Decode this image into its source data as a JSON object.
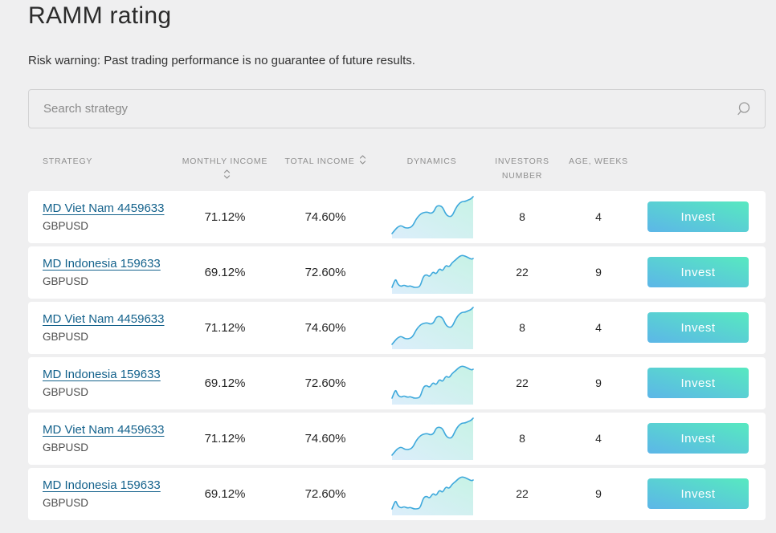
{
  "page": {
    "title": "RAMM rating",
    "risk_warning": "Risk warning: Past trading performance is no guarantee of future results."
  },
  "search": {
    "placeholder": "Search strategy",
    "icon": "magnifier-icon"
  },
  "colors": {
    "link": "#14628c",
    "chart_line": "#3fa9dc",
    "chart_fill_start": "#dceefb",
    "chart_fill_end": "#c7f3e5",
    "button_gradient_start": "#5cb6e8",
    "button_gradient_end": "#57e9c0"
  },
  "table": {
    "headers": {
      "strategy": "STRATEGY",
      "monthly_income": "MONTHLY INCOME",
      "total_income": "TOTAL INCOME",
      "dynamics": "DYNAMICS",
      "investors_line1": "INVESTORS",
      "investors_line2": "NUMBER",
      "age_weeks": "AGE, WEEKS",
      "sort_icon": "chevron-up-down-icon"
    },
    "invest_button_label": "Invest",
    "sparklines": {
      "vietnam": [
        [
          2,
          48
        ],
        [
          6,
          43
        ],
        [
          10,
          39
        ],
        [
          14,
          38
        ],
        [
          18,
          41
        ],
        [
          24,
          41
        ],
        [
          28,
          38
        ],
        [
          32,
          30
        ],
        [
          36,
          25
        ],
        [
          40,
          22
        ],
        [
          46,
          21
        ],
        [
          50,
          23
        ],
        [
          54,
          21
        ],
        [
          57,
          14
        ],
        [
          61,
          13
        ],
        [
          65,
          15
        ],
        [
          69,
          24
        ],
        [
          73,
          27
        ],
        [
          77,
          26
        ],
        [
          81,
          17
        ],
        [
          85,
          11
        ],
        [
          89,
          8
        ],
        [
          93,
          8
        ],
        [
          97,
          6
        ],
        [
          100,
          5
        ],
        [
          103,
          2
        ]
      ],
      "indonesia": [
        [
          2,
          46
        ],
        [
          5,
          38
        ],
        [
          7,
          36
        ],
        [
          9,
          42
        ],
        [
          13,
          45
        ],
        [
          17,
          43
        ],
        [
          21,
          45
        ],
        [
          25,
          44
        ],
        [
          29,
          46
        ],
        [
          33,
          46
        ],
        [
          37,
          45
        ],
        [
          41,
          32
        ],
        [
          45,
          30
        ],
        [
          49,
          33
        ],
        [
          53,
          26
        ],
        [
          57,
          30
        ],
        [
          61,
          22
        ],
        [
          65,
          26
        ],
        [
          69,
          18
        ],
        [
          73,
          21
        ],
        [
          77,
          15
        ],
        [
          81,
          12
        ],
        [
          85,
          8
        ],
        [
          89,
          6
        ],
        [
          93,
          7
        ],
        [
          97,
          9
        ],
        [
          101,
          11
        ],
        [
          103,
          10
        ]
      ]
    },
    "rows": [
      {
        "name": "MD Viet Nam 4459633",
        "symbol": "GBPUSD",
        "monthly_income": "71.12%",
        "total_income": "74.60%",
        "investors": "8",
        "age_weeks": "4",
        "sparkline": "vietnam"
      },
      {
        "name": "MD Indonesia 159633",
        "symbol": "GBPUSD",
        "monthly_income": "69.12%",
        "total_income": "72.60%",
        "investors": "22",
        "age_weeks": "9",
        "sparkline": "indonesia"
      },
      {
        "name": "MD Viet Nam 4459633",
        "symbol": "GBPUSD",
        "monthly_income": "71.12%",
        "total_income": "74.60%",
        "investors": "8",
        "age_weeks": "4",
        "sparkline": "vietnam"
      },
      {
        "name": "MD Indonesia 159633",
        "symbol": "GBPUSD",
        "monthly_income": "69.12%",
        "total_income": "72.60%",
        "investors": "22",
        "age_weeks": "9",
        "sparkline": "indonesia"
      },
      {
        "name": "MD Viet Nam 4459633",
        "symbol": "GBPUSD",
        "monthly_income": "71.12%",
        "total_income": "74.60%",
        "investors": "8",
        "age_weeks": "4",
        "sparkline": "vietnam"
      },
      {
        "name": "MD Indonesia 159633",
        "symbol": "GBPUSD",
        "monthly_income": "69.12%",
        "total_income": "72.60%",
        "investors": "22",
        "age_weeks": "9",
        "sparkline": "indonesia"
      }
    ]
  }
}
